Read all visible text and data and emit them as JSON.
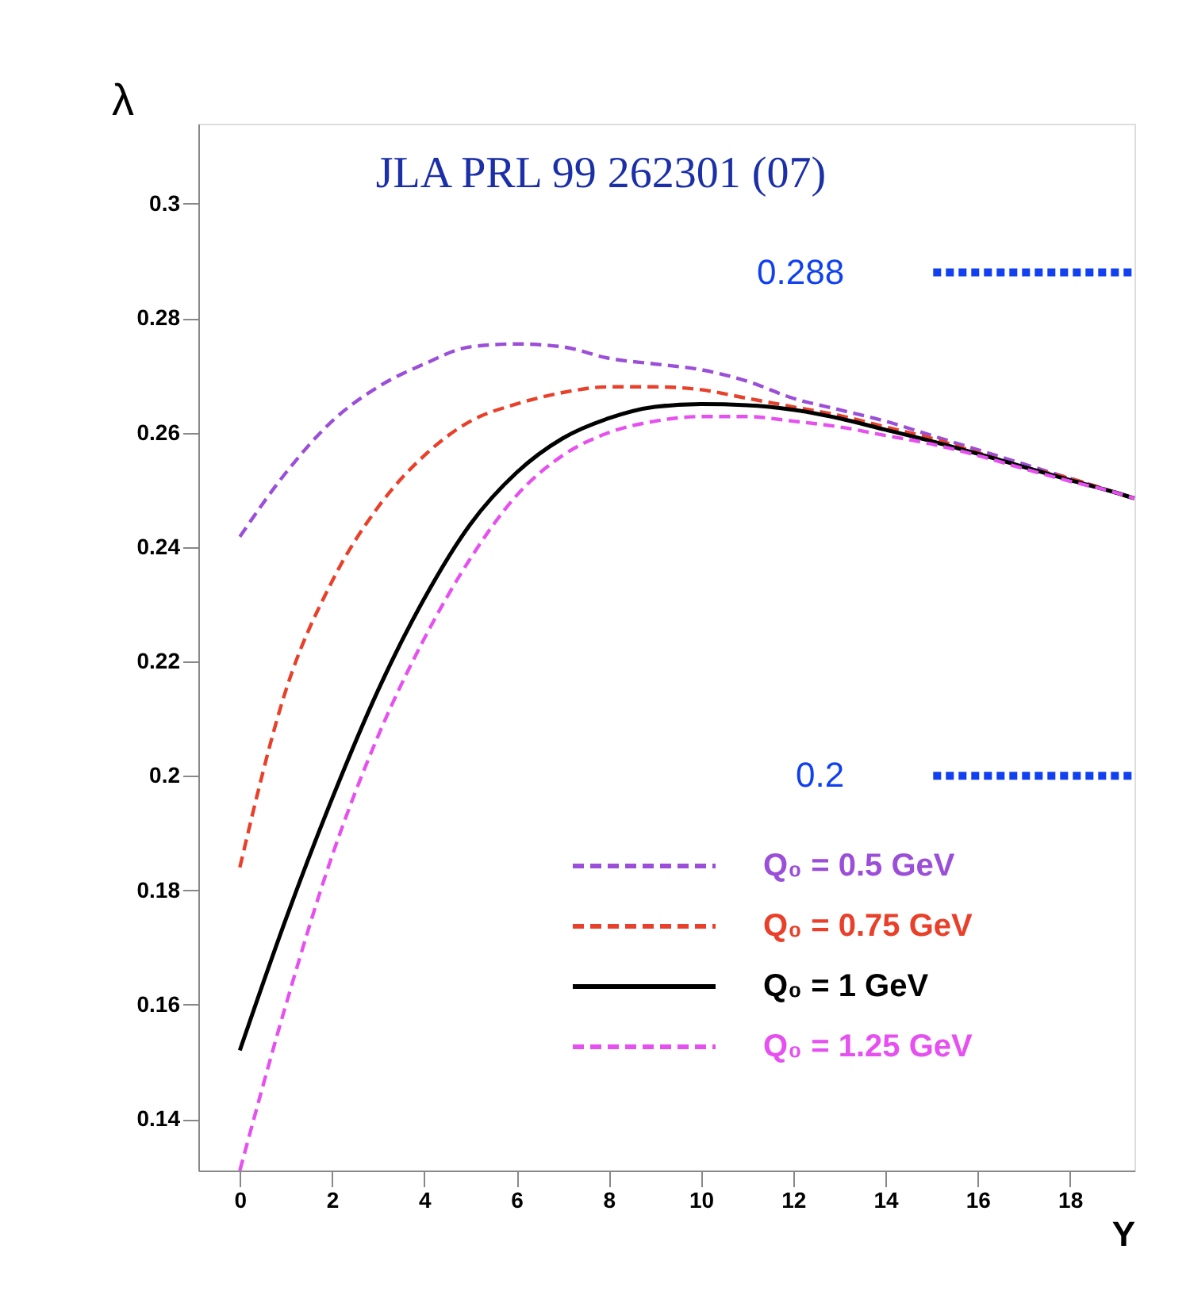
{
  "chart_data": {
    "type": "line",
    "xlabel": "Y",
    "ylabel": "λ",
    "annotations": [
      "JLA PRL 99 262301 (07)"
    ],
    "x": [
      0,
      1,
      2,
      3,
      4,
      5,
      6,
      7,
      8,
      9,
      10,
      11,
      12,
      13,
      14,
      15,
      16,
      17,
      18,
      19,
      19.4
    ],
    "series": [
      {
        "name": "Q₀ = 0.5 GeV",
        "color": "#9b4fd8",
        "line_style": "dashed",
        "values": [
          0.2418,
          0.253,
          0.262,
          0.268,
          0.272,
          0.275,
          0.2755,
          0.275,
          0.273,
          0.272,
          0.271,
          0.269,
          0.266,
          0.264,
          0.262,
          0.2595,
          0.257,
          0.2545,
          0.252,
          0.2495,
          0.2485
        ]
      },
      {
        "name": "Q₀ = 0.75 GeV",
        "color": "#e8402a",
        "line_style": "dashed",
        "values": [
          0.184,
          0.215,
          0.234,
          0.247,
          0.256,
          0.262,
          0.265,
          0.267,
          0.268,
          0.268,
          0.2675,
          0.266,
          0.2645,
          0.263,
          0.261,
          0.259,
          0.2565,
          0.254,
          0.252,
          0.2495,
          0.2485
        ]
      },
      {
        "name": "Q₀ = 1 GeV",
        "color": "#000000",
        "line_style": "solid",
        "values": [
          0.152,
          0.175,
          0.196,
          0.215,
          0.231,
          0.244,
          0.253,
          0.259,
          0.2625,
          0.2645,
          0.265,
          0.2648,
          0.264,
          0.2625,
          0.2605,
          0.2585,
          0.2563,
          0.254,
          0.2517,
          0.2495,
          0.2485
        ]
      },
      {
        "name": "Q₀ = 1.25 GeV",
        "color": "#e650f0",
        "line_style": "dashed",
        "values": [
          0.131,
          0.16,
          0.186,
          0.207,
          0.224,
          0.238,
          0.249,
          0.256,
          0.26,
          0.262,
          0.2628,
          0.2628,
          0.262,
          0.261,
          0.2595,
          0.258,
          0.256,
          0.2537,
          0.2515,
          0.2495,
          0.2485
        ]
      }
    ],
    "ref_lines": [
      {
        "axis": "y",
        "value": 0.288,
        "label": "0.288",
        "color": "#1040f0",
        "line_style": "dotted"
      },
      {
        "axis": "y",
        "value": 0.2,
        "label": "0.2",
        "color": "#1040f0",
        "line_style": "dotted"
      }
    ],
    "xlim": [
      -0.9,
      19.4
    ],
    "ylim": [
      0.131,
      0.314
    ],
    "xticks": [
      0,
      2,
      4,
      6,
      8,
      10,
      12,
      14,
      16,
      18
    ],
    "yticks": [
      0.14,
      0.16,
      0.18,
      0.2,
      0.22,
      0.24,
      0.26,
      0.28,
      0.3
    ],
    "grid": false,
    "legend": "bottom right"
  }
}
